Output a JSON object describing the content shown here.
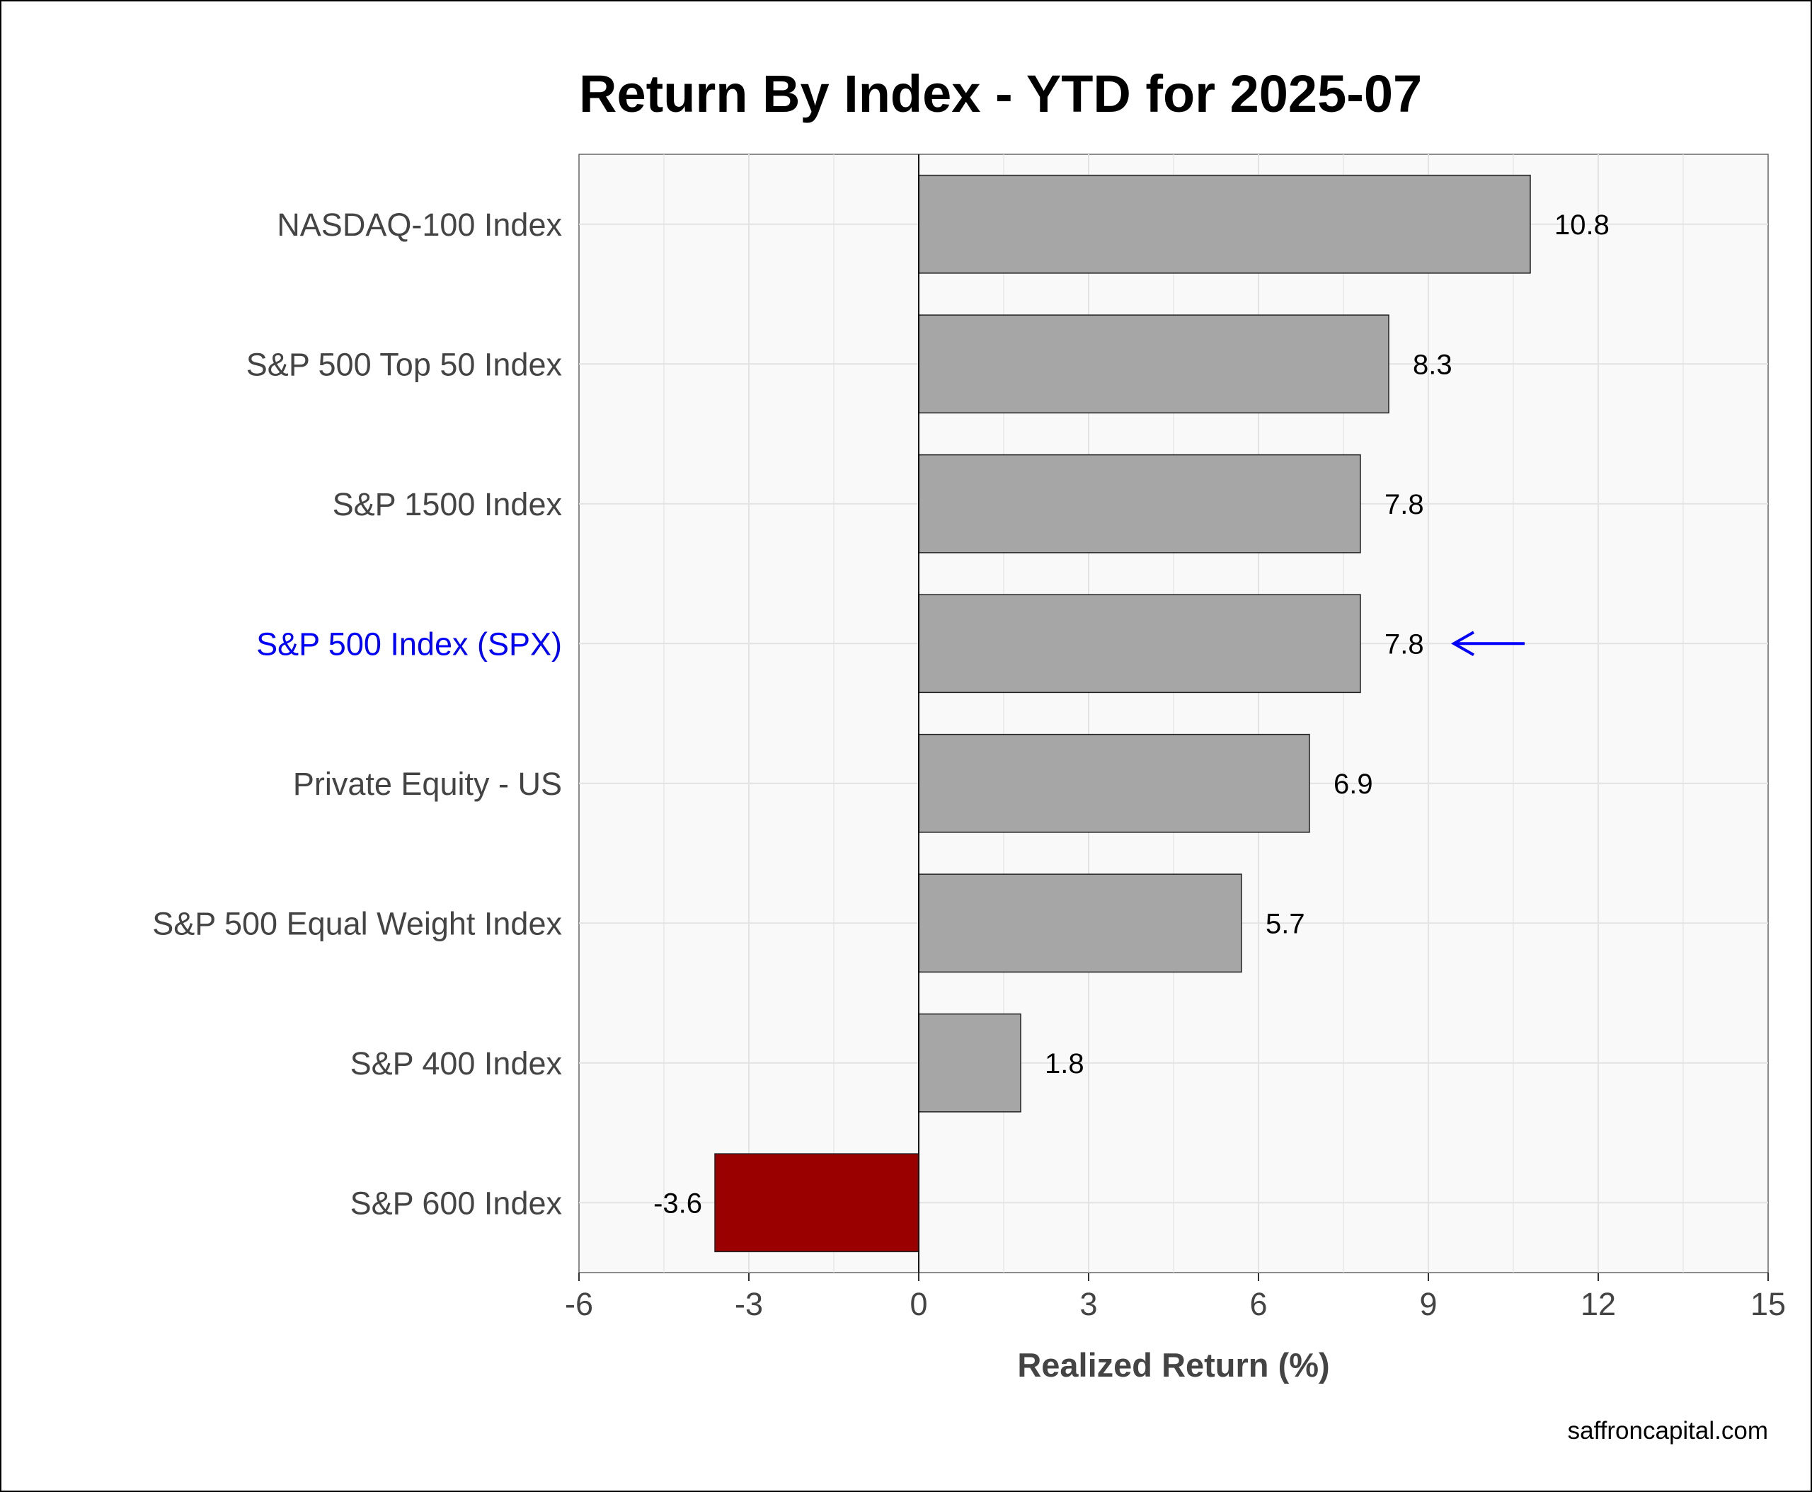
{
  "chart_data": {
    "type": "bar",
    "orientation": "horizontal",
    "title": "Return By Index - YTD for 2025-07",
    "xlabel": "Realized Return (%)",
    "ylabel": "",
    "xlim": [
      -6,
      15
    ],
    "xticks": [
      -6,
      -3,
      0,
      3,
      6,
      9,
      12,
      15
    ],
    "grid": true,
    "categories": [
      "NASDAQ-100 Index",
      "S&P 500 Top 50 Index",
      "S&P 1500 Index",
      "S&P 500 Index (SPX)",
      "Private Equity - US",
      "S&P 500 Equal Weight Index",
      "S&P 400 Index",
      "S&P 600 Index"
    ],
    "values": [
      10.8,
      8.3,
      7.8,
      7.8,
      6.9,
      5.7,
      1.8,
      -3.6
    ],
    "value_labels": [
      "10.8",
      "8.3",
      "7.8",
      "7.8",
      "6.9",
      "5.7",
      "1.8",
      "-3.6"
    ],
    "highlight_category": "S&P 500 Index (SPX)",
    "colors": {
      "positive_bar": "#a6a6a6",
      "negative_bar": "#9b0000",
      "highlight_text": "#0000ff",
      "highlight_arrow": "#0000ff",
      "panel_background": "#f9f9f9",
      "grid": "#e3e3e3"
    }
  },
  "footer": {
    "source": "saffroncapital.com"
  }
}
